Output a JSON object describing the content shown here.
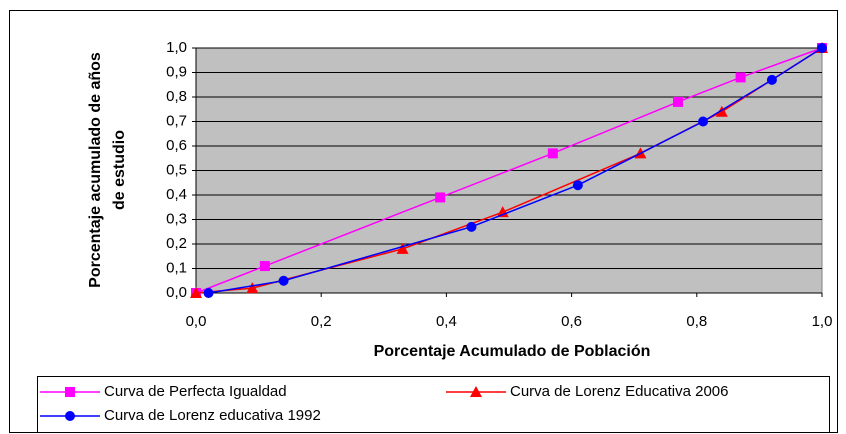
{
  "chart_data": {
    "type": "line",
    "xlabel": "Porcentaje Acumulado de Población",
    "ylabel": [
      "Porcentaje acumulado de años",
      "de estudio"
    ],
    "xlim": [
      0,
      1
    ],
    "ylim": [
      0,
      1
    ],
    "xticks": [
      {
        "value": 0,
        "label": "0,0"
      },
      {
        "value": 0.2,
        "label": "0,2"
      },
      {
        "value": 0.4,
        "label": "0,4"
      },
      {
        "value": 0.6,
        "label": "0,6"
      },
      {
        "value": 0.8,
        "label": "0,8"
      },
      {
        "value": 1,
        "label": "1,0"
      }
    ],
    "yticks": [
      {
        "value": 0,
        "label": "0,0"
      },
      {
        "value": 0.1,
        "label": "0,1"
      },
      {
        "value": 0.2,
        "label": "0,2"
      },
      {
        "value": 0.3,
        "label": "0,3"
      },
      {
        "value": 0.4,
        "label": "0,4"
      },
      {
        "value": 0.5,
        "label": "0,5"
      },
      {
        "value": 0.6,
        "label": "0,6"
      },
      {
        "value": 0.7,
        "label": "0,7"
      },
      {
        "value": 0.8,
        "label": "0,8"
      },
      {
        "value": 0.9,
        "label": "0,9"
      },
      {
        "value": 1,
        "label": "1,0"
      }
    ],
    "grid": true,
    "background": "#c0c0c0",
    "series": [
      {
        "name": "Curva de Perfecta Igualdad",
        "color": "#ff00ff",
        "marker": "square",
        "x": [
          0,
          0.11,
          0.39,
          0.57,
          0.77,
          0.87,
          1.0
        ],
        "values": [
          0,
          0.11,
          0.39,
          0.57,
          0.78,
          0.88,
          1.0
        ]
      },
      {
        "name": "Curva de Lorenz Educativa 2006",
        "color": "#ff0000",
        "marker": "triangle",
        "x": [
          0,
          0.09,
          0.33,
          0.49,
          0.71,
          0.84,
          1.0
        ],
        "values": [
          0,
          0.02,
          0.18,
          0.33,
          0.57,
          0.74,
          1.0
        ]
      },
      {
        "name": "Curva de Lorenz  educativa 1992",
        "color": "#0000ff",
        "marker": "circle",
        "x": [
          0.02,
          0.14,
          0.44,
          0.61,
          0.81,
          0.92,
          1.0
        ],
        "values": [
          0,
          0.05,
          0.27,
          0.44,
          0.7,
          0.87,
          1.0
        ]
      }
    ]
  }
}
